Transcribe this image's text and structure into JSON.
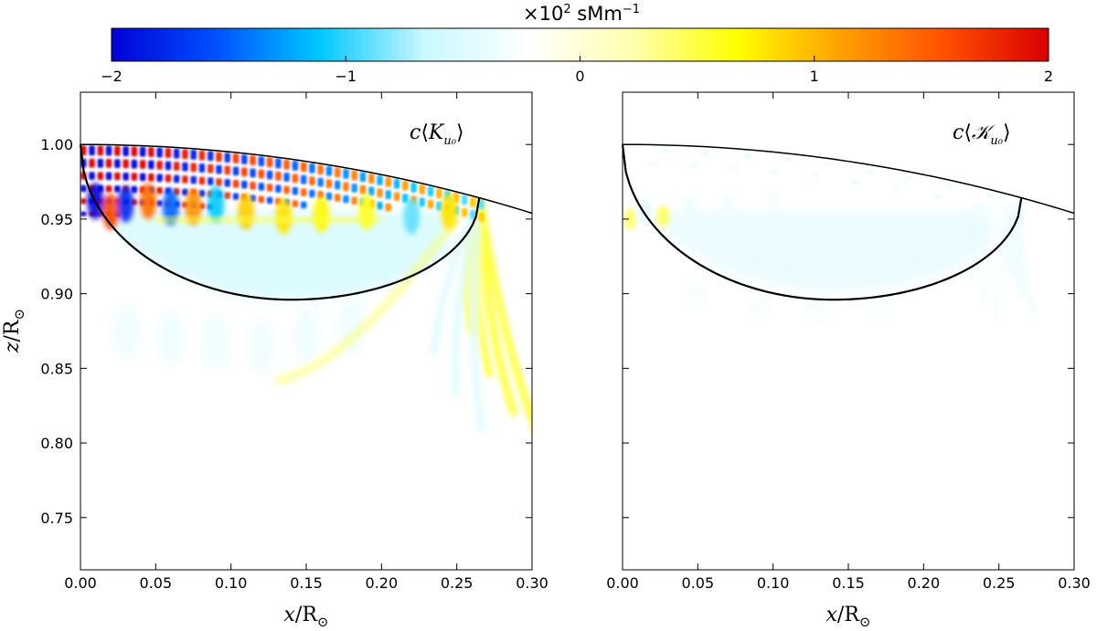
{
  "chart_data": [
    {
      "type": "heatmap",
      "panel_label": "c⟨K_u₀⟩",
      "panel_label_parts": {
        "c": "c",
        "open": "⟨",
        "symbol": "K",
        "sub": "u₀",
        "close": "⟩"
      },
      "xlabel": "x/R⊙",
      "xlabel_parts": {
        "var": "x",
        "slash": "/R",
        "sub": "⊙"
      },
      "ylabel": "z/R⊙",
      "ylabel_parts": {
        "var": "z",
        "slash": "/R",
        "sub": "⊙"
      },
      "xlim": [
        0.0,
        0.3
      ],
      "ylim": [
        0.715,
        1.035
      ],
      "xticks": [
        0.0,
        0.05,
        0.1,
        0.15,
        0.2,
        0.25,
        0.3
      ],
      "xtick_labels": [
        "0.00",
        "0.05",
        "0.10",
        "0.15",
        "0.20",
        "0.25",
        "0.30"
      ],
      "yticks": [
        0.75,
        0.8,
        0.85,
        0.9,
        0.95,
        1.0
      ],
      "ytick_labels": [
        "0.75",
        "0.80",
        "0.85",
        "0.90",
        "0.95",
        "1.00"
      ],
      "surface_curve": {
        "radius": 1.0,
        "x_range": [
          0.0,
          0.3
        ]
      },
      "ray_path": {
        "x_start": 0.0,
        "x_end": 0.265,
        "z_surface": 0.9645,
        "min_x": 0.14,
        "min_z": 0.896
      },
      "field_description": "strong red/blue oscillating kernel near the surface, cyan negative region inside the ray path"
    },
    {
      "type": "heatmap",
      "panel_label": "c⟨𝒦_u₀⟩",
      "panel_label_parts": {
        "c": "c",
        "open": "⟨",
        "symbol": "𝒦",
        "sub": "u₀",
        "close": "⟩"
      },
      "xlabel": "x/R⊙",
      "xlabel_parts": {
        "var": "x",
        "slash": "/R",
        "sub": "⊙"
      },
      "xlim": [
        0.0,
        0.3
      ],
      "ylim": [
        0.715,
        1.035
      ],
      "xticks": [
        0.0,
        0.05,
        0.1,
        0.15,
        0.2,
        0.25,
        0.3
      ],
      "xtick_labels": [
        "0.00",
        "0.05",
        "0.10",
        "0.15",
        "0.20",
        "0.25",
        "0.30"
      ],
      "yticks": [
        0.75,
        0.8,
        0.85,
        0.9,
        0.95,
        1.0
      ],
      "surface_curve": {
        "radius": 1.0,
        "x_range": [
          0.0,
          0.3
        ]
      },
      "ray_path": {
        "x_start": 0.0,
        "x_end": 0.265,
        "z_surface": 0.9645,
        "min_x": 0.14,
        "min_z": 0.896
      },
      "field_description": "smooth weak negative (cyan) kernel inside the ray path with faint fringes"
    }
  ],
  "colorbar": {
    "title": "×10² sMm⁻¹",
    "title_parts": {
      "times": "×10",
      "exp": "2",
      "unit": " sMm",
      "unit_exp": "−1"
    },
    "range": [
      -2,
      2
    ],
    "ticks": [
      -2,
      -1,
      0,
      1,
      2
    ],
    "tick_labels": [
      "−2",
      "−1",
      "0",
      "1",
      "2"
    ],
    "colors": [
      "#0000d8",
      "#0050ff",
      "#00c8ff",
      "#c8f8ff",
      "#ffffff",
      "#ffffb0",
      "#ffff00",
      "#ffa000",
      "#ff5000",
      "#d80000"
    ]
  }
}
